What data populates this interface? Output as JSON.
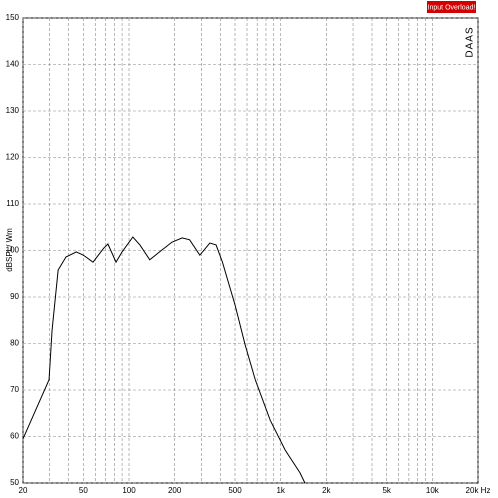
{
  "chart_data": {
    "type": "line",
    "ylabel": "dBSPL/ Wm",
    "badge": "Input Overload!",
    "watermark": "DAAS",
    "log_x": true,
    "grid": true,
    "xlim": [
      20,
      20000
    ],
    "ylim": [
      50,
      150
    ],
    "xticks": [
      {
        "value": 20,
        "label": "20"
      },
      {
        "value": 50,
        "label": "50"
      },
      {
        "value": 100,
        "label": "100"
      },
      {
        "value": 200,
        "label": "200"
      },
      {
        "value": 500,
        "label": "500"
      },
      {
        "value": 1000,
        "label": "1k"
      },
      {
        "value": 2000,
        "label": "2k"
      },
      {
        "value": 5000,
        "label": "5k"
      },
      {
        "value": 10000,
        "label": "10k"
      },
      {
        "value": 20000,
        "label": "20k Hz"
      }
    ],
    "xminorticks": [
      30,
      40,
      60,
      70,
      80,
      90,
      300,
      400,
      600,
      700,
      800,
      900,
      3000,
      4000,
      6000,
      7000,
      8000,
      9000
    ],
    "yticks": [
      50,
      60,
      70,
      80,
      90,
      100,
      110,
      120,
      130,
      140,
      150
    ],
    "x": [
      20,
      29.7,
      31.1,
      34.1,
      38.4,
      44.9,
      50,
      57.9,
      68.1,
      72.6,
      82.1,
      90,
      106,
      118,
      137,
      159,
      192,
      224,
      251,
      293,
      341,
      375,
      413,
      500,
      583,
      680,
      853,
      1070,
      1340,
      1445
    ],
    "series": [
      {
        "color": "#000000",
        "values": [
          59.5,
          72.2,
          82.9,
          95.8,
          98.6,
          99.7,
          99,
          97.5,
          100.5,
          101.4,
          97.5,
          99.7,
          102.9,
          101.2,
          98,
          99.7,
          101.8,
          102.7,
          102.3,
          99,
          101.6,
          101.2,
          97.5,
          88.3,
          79.7,
          72.2,
          63.5,
          57.1,
          52.2,
          50
        ]
      }
    ]
  }
}
